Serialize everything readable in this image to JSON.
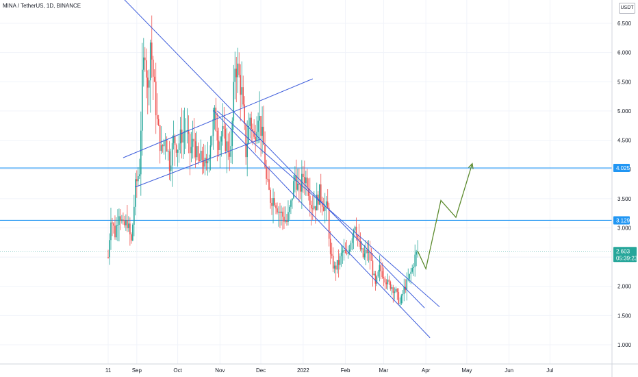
{
  "header": {
    "title": "MINA / TetherUS, 1D, BINANCE",
    "currency": "USDT"
  },
  "colors": {
    "up": "#26a69a",
    "down": "#ef5350",
    "level_line": "#2196f3",
    "level_label_bg": "#2196f3",
    "price_label_bg": "#26a69a",
    "trendline": "#3b5bdb",
    "projection": "#5b8a2c",
    "grid": "#f0f3fa"
  },
  "chart_data": {
    "type": "candlestick",
    "title": "MINA / TetherUS, 1D, BINANCE",
    "y_ticks": [
      "6.500",
      "6.000",
      "5.500",
      "5.000",
      "4.500",
      "4.000",
      "3.500",
      "3.000",
      "2.500",
      "2.000",
      "1.500",
      "1.000"
    ],
    "y_tick_values": [
      6.5,
      6.0,
      5.5,
      5.0,
      4.5,
      4.0,
      3.5,
      3.0,
      2.5,
      2.0,
      1.5,
      1.0
    ],
    "ylim": [
      0.6,
      7.0
    ],
    "x_ticks": [
      "11",
      "Sep",
      "Oct",
      "Nov",
      "Dec",
      "2022",
      "Feb",
      "Mar",
      "Apr",
      "May",
      "Jun",
      "Jul"
    ],
    "x_tick_dates": [
      "2021-08-11",
      "2021-09-01",
      "2021-10-01",
      "2021-11-01",
      "2021-12-01",
      "2022-01-01",
      "2022-02-01",
      "2022-03-01",
      "2022-04-01",
      "2022-05-01",
      "2022-06-01",
      "2022-07-01"
    ],
    "x_range": [
      "2021-08-10",
      "2022-07-10"
    ],
    "grid": true,
    "horizontal_levels": [
      {
        "value": 4.025,
        "label": "4.025"
      },
      {
        "value": 3.129,
        "label": "3.129"
      }
    ],
    "last_price": {
      "value": 2.603,
      "label": "2.603",
      "countdown": "05:39:23"
    },
    "price_series": [
      [
        "2021-08-11",
        2.5
      ],
      [
        "2021-08-13",
        3.2
      ],
      [
        "2021-08-16",
        2.9
      ],
      [
        "2021-08-19",
        3.3
      ],
      [
        "2021-08-22",
        3.0
      ],
      [
        "2021-08-25",
        3.1
      ],
      [
        "2021-08-28",
        2.75
      ],
      [
        "2021-08-31",
        3.7
      ],
      [
        "2021-09-03",
        4.0
      ],
      [
        "2021-09-05",
        5.5
      ],
      [
        "2021-09-07",
        6.1
      ],
      [
        "2021-09-09",
        5.3
      ],
      [
        "2021-09-11",
        6.2
      ],
      [
        "2021-09-13",
        5.6
      ],
      [
        "2021-09-16",
        4.8
      ],
      [
        "2021-09-19",
        4.3
      ],
      [
        "2021-09-22",
        4.6
      ],
      [
        "2021-09-25",
        4.1
      ],
      [
        "2021-09-28",
        4.5
      ],
      [
        "2021-10-01",
        4.4
      ],
      [
        "2021-10-04",
        4.6
      ],
      [
        "2021-10-07",
        4.7
      ],
      [
        "2021-10-10",
        4.3
      ],
      [
        "2021-10-13",
        4.5
      ],
      [
        "2021-10-16",
        4.1
      ],
      [
        "2021-10-19",
        4.2
      ],
      [
        "2021-10-22",
        4.0
      ],
      [
        "2021-10-25",
        4.5
      ],
      [
        "2021-10-28",
        4.9
      ],
      [
        "2021-10-31",
        4.5
      ],
      [
        "2021-11-03",
        4.6
      ],
      [
        "2021-11-06",
        4.4
      ],
      [
        "2021-11-09",
        4.3
      ],
      [
        "2021-11-12",
        5.8
      ],
      [
        "2021-11-14",
        5.7
      ],
      [
        "2021-11-17",
        5.3
      ],
      [
        "2021-11-20",
        4.3
      ],
      [
        "2021-11-23",
        4.9
      ],
      [
        "2021-11-26",
        4.5
      ],
      [
        "2021-11-29",
        5.0
      ],
      [
        "2021-12-01",
        4.7
      ],
      [
        "2021-12-03",
        4.4
      ],
      [
        "2021-12-05",
        3.8
      ],
      [
        "2021-12-08",
        3.5
      ],
      [
        "2021-12-11",
        3.5
      ],
      [
        "2021-12-14",
        3.3
      ],
      [
        "2021-12-17",
        3.2
      ],
      [
        "2021-12-20",
        3.1
      ],
      [
        "2021-12-23",
        3.4
      ],
      [
        "2021-12-26",
        3.9
      ],
      [
        "2021-12-29",
        3.6
      ],
      [
        "2022-01-01",
        3.9
      ],
      [
        "2022-01-04",
        3.8
      ],
      [
        "2022-01-07",
        3.4
      ],
      [
        "2022-01-10",
        3.4
      ],
      [
        "2022-01-13",
        3.6
      ],
      [
        "2022-01-16",
        3.4
      ],
      [
        "2022-01-19",
        3.3
      ],
      [
        "2022-01-21",
        2.5
      ],
      [
        "2022-01-24",
        2.3
      ],
      [
        "2022-01-27",
        2.4
      ],
      [
        "2022-01-30",
        2.6
      ],
      [
        "2022-02-02",
        2.5
      ],
      [
        "2022-02-05",
        2.8
      ],
      [
        "2022-02-08",
        3.1
      ],
      [
        "2022-02-11",
        2.7
      ],
      [
        "2022-02-14",
        2.5
      ],
      [
        "2022-02-17",
        2.6
      ],
      [
        "2022-02-20",
        2.4
      ],
      [
        "2022-02-23",
        2.0
      ],
      [
        "2022-02-26",
        2.3
      ],
      [
        "2022-03-01",
        2.2
      ],
      [
        "2022-03-04",
        2.05
      ],
      [
        "2022-03-07",
        2.0
      ],
      [
        "2022-03-10",
        1.9
      ],
      [
        "2022-03-13",
        1.7
      ],
      [
        "2022-03-16",
        1.95
      ],
      [
        "2022-03-19",
        2.1
      ],
      [
        "2022-03-22",
        2.3
      ],
      [
        "2022-03-24",
        2.5
      ],
      [
        "2022-03-26",
        2.603
      ]
    ],
    "trendlines": [
      {
        "from": [
          "2021-08-21",
          6.95
        ],
        "to": [
          "2022-03-31",
          1.63
        ]
      },
      {
        "from": [
          "2021-08-31",
          3.7
        ],
        "to": [
          "2021-12-01",
          4.52
        ]
      },
      {
        "from": [
          "2021-10-27",
          5.01
        ],
        "to": [
          "2022-04-04",
          1.12
        ]
      },
      {
        "from": [
          "2021-10-30",
          5.0
        ],
        "to": [
          "2022-04-11",
          1.65
        ]
      },
      {
        "from": [
          "2021-08-22",
          4.2
        ],
        "to": [
          "2022-01-08",
          5.55
        ]
      }
    ],
    "projection": [
      [
        "2022-03-26",
        2.603
      ],
      [
        "2022-04-01",
        2.3
      ],
      [
        "2022-04-12",
        3.47
      ],
      [
        "2022-04-23",
        3.18
      ],
      [
        "2022-05-05",
        4.1
      ]
    ]
  }
}
